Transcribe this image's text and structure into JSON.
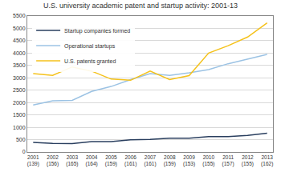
{
  "chart_data": {
    "type": "line",
    "title": "U.S. university academic patent and startup activity: 2001-13",
    "categories": [
      "2001 (139)",
      "2002 (156)",
      "2003 (165)",
      "2004 (164)",
      "2005 (159)",
      "2006 (161)",
      "2007 (161)",
      "2008 (159)",
      "2009 (153)",
      "2010 (155)",
      "2011 (157)",
      "2012 (155)",
      "2013 (162)"
    ],
    "series": [
      {
        "name": "Startup companies formed",
        "color": "#2a3f5f",
        "values": [
          390,
          350,
          340,
          420,
          420,
          490,
          510,
          555,
          560,
          620,
          620,
          670,
          760
        ]
      },
      {
        "name": "Operational startups",
        "color": "#9cc3e4",
        "values": [
          1900,
          2070,
          2090,
          2450,
          2650,
          2930,
          3170,
          3100,
          3200,
          3330,
          3570,
          3750,
          3950
        ]
      },
      {
        "name": "U.S. patents granted",
        "color": "#f5c21b",
        "values": [
          3170,
          3100,
          3440,
          3270,
          2950,
          2900,
          3270,
          2930,
          3090,
          4000,
          4300,
          4650,
          5220
        ]
      }
    ],
    "ylim": [
      0,
      5500
    ],
    "yticks": [
      0,
      500,
      1000,
      1500,
      2000,
      2500,
      3000,
      3500,
      4000,
      4500,
      5000,
      5500
    ],
    "grid": true,
    "legend": "upper left"
  }
}
